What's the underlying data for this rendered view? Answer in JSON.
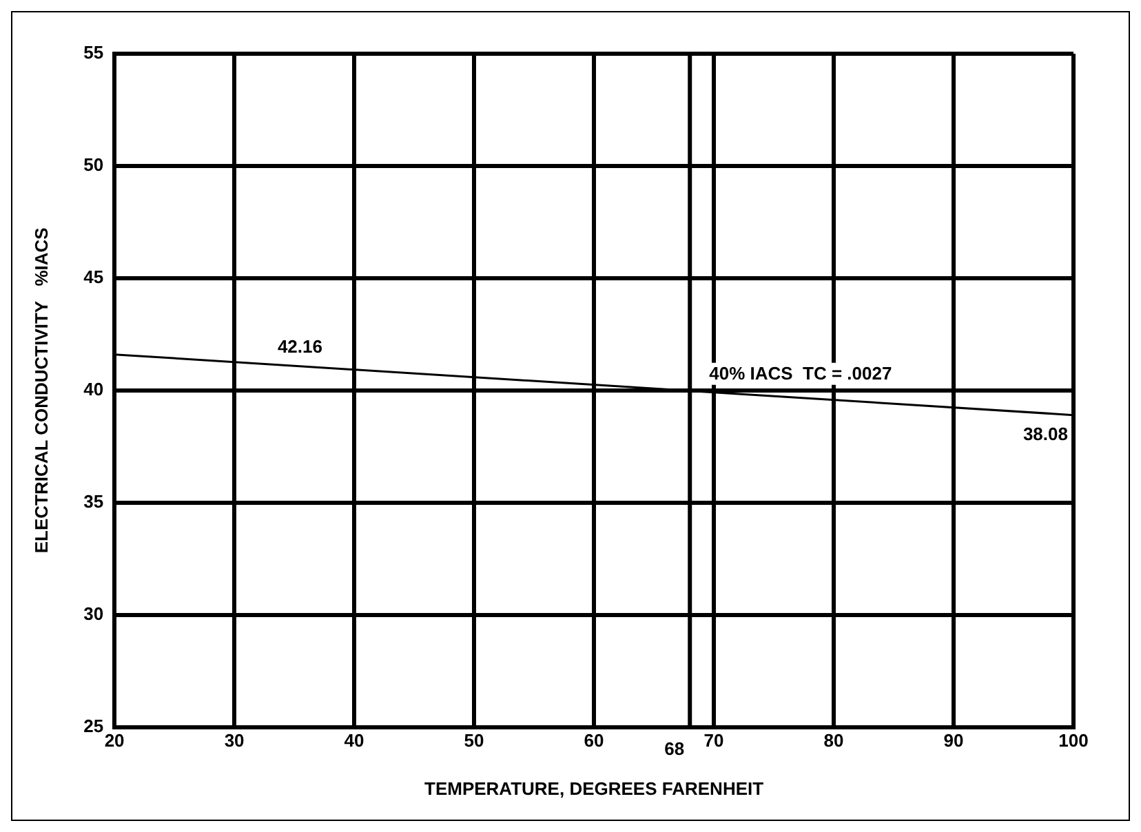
{
  "chart_data": {
    "type": "line",
    "xlabel": "TEMPERATURE, DEGREES FARENHEIT",
    "ylabel": "ELECTRICAL CONDUCTIVITY   %IACS",
    "x": [
      20,
      100
    ],
    "series": [
      {
        "color": "#000000",
        "values": [
          41.6,
          38.9
        ]
      }
    ],
    "xlim": [
      20,
      100
    ],
    "xticks": [
      20,
      30,
      40,
      50,
      60,
      70,
      80,
      90,
      100
    ],
    "ylim": [
      25,
      55
    ],
    "yticks": [
      25,
      30,
      35,
      40,
      45,
      50,
      55
    ],
    "grid": true,
    "legend": false,
    "marker": "none",
    "line_style": "solid",
    "ref_lines": [
      {
        "axis": "x",
        "value": 68,
        "label": "68",
        "color": "#000000"
      }
    ],
    "annotations": [
      {
        "text": "42.16",
        "x": 32,
        "y": 41.2
      },
      {
        "text": "40% IACS  TC = .0027",
        "x": 68,
        "y": 40
      },
      {
        "text": "38.08",
        "x": 100,
        "y": 38.9
      }
    ]
  }
}
